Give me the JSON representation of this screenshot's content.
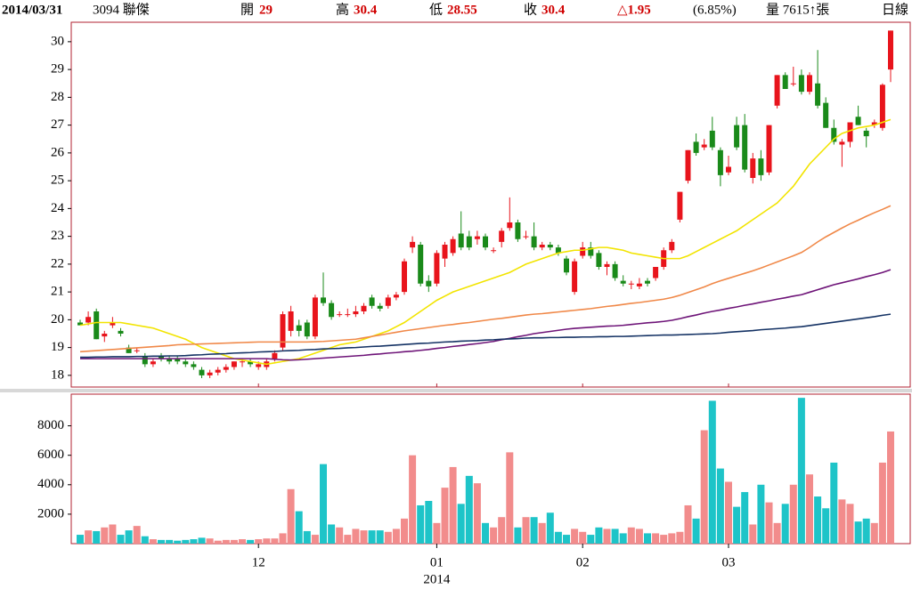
{
  "header": {
    "date": "2014/03/31",
    "stock": "3094 聯傑",
    "open_label": "開",
    "open": "29",
    "high_label": "高",
    "high": "30.4",
    "low_label": "低",
    "low": "28.55",
    "close_label": "收",
    "close": "30.4",
    "change": "△1.95",
    "change_pct": "(6.85%)",
    "volume": "量 7615↑張",
    "period": "日線"
  },
  "chart_data": [
    {
      "type": "candlestick",
      "up_color": "#e8141c",
      "down_color": "#1a8a1a",
      "categories": [
        null,
        null,
        null,
        null,
        null,
        null,
        null,
        null,
        null,
        null,
        null,
        null,
        null,
        null,
        null,
        null,
        null,
        null,
        null,
        null,
        null,
        null,
        "12",
        null,
        null,
        null,
        null,
        null,
        null,
        null,
        null,
        null,
        null,
        null,
        null,
        null,
        null,
        null,
        null,
        null,
        null,
        null,
        null,
        null,
        "01",
        null,
        null,
        null,
        null,
        null,
        null,
        null,
        null,
        null,
        null,
        null,
        null,
        null,
        null,
        null,
        null,
        null,
        "02",
        null,
        null,
        null,
        null,
        null,
        null,
        null,
        null,
        null,
        null,
        null,
        null,
        null,
        null,
        null,
        null,
        null,
        "03",
        null,
        null,
        null,
        null,
        null,
        null,
        null,
        null,
        null,
        null,
        null,
        null,
        null,
        null,
        null,
        null,
        null,
        null,
        null,
        null
      ],
      "year_label": "2014",
      "open": [
        19.9,
        19.9,
        20.3,
        19.4,
        19.8,
        19.6,
        19.0,
        18.9,
        18.7,
        18.4,
        18.7,
        18.6,
        18.6,
        18.5,
        18.4,
        18.2,
        18.0,
        18.1,
        18.2,
        18.3,
        18.5,
        18.5,
        18.3,
        18.3,
        18.6,
        19.0,
        19.6,
        19.8,
        19.9,
        19.4,
        20.8,
        20.6,
        20.2,
        20.2,
        20.2,
        20.3,
        20.8,
        20.5,
        20.5,
        20.8,
        21.0,
        22.6,
        22.7,
        21.4,
        21.3,
        22.2,
        22.4,
        23.1,
        23.0,
        22.9,
        23.0,
        22.5,
        22.8,
        23.3,
        23.5,
        23.0,
        23.0,
        22.6,
        22.7,
        22.6,
        22.2,
        21.0,
        22.3,
        22.6,
        22.4,
        21.9,
        22.0,
        21.4,
        21.3,
        21.2,
        21.4,
        21.5,
        21.9,
        22.5,
        23.6,
        25.0,
        26.4,
        26.2,
        26.8,
        26.1,
        25.3,
        27.0,
        27.0,
        25.1,
        25.8,
        25.3,
        27.7,
        28.8,
        28.5,
        28.8,
        28.2,
        28.5,
        27.8,
        26.9,
        26.3,
        26.4,
        27.3,
        26.8,
        27.0,
        26.9,
        29
      ],
      "high": [
        20.0,
        20.3,
        20.4,
        19.6,
        20.1,
        19.7,
        19.1,
        19.0,
        18.8,
        18.6,
        18.8,
        18.7,
        18.7,
        18.6,
        18.5,
        18.3,
        18.2,
        18.3,
        18.4,
        18.5,
        18.6,
        18.6,
        18.5,
        18.6,
        18.9,
        20.3,
        20.5,
        20.0,
        20.0,
        20.9,
        21.7,
        20.7,
        20.3,
        20.4,
        20.5,
        20.6,
        20.9,
        20.6,
        20.9,
        21.0,
        22.2,
        23.0,
        22.8,
        21.6,
        22.5,
        22.8,
        23.0,
        23.9,
        23.2,
        23.2,
        23.1,
        22.6,
        23.3,
        24.4,
        23.6,
        23.2,
        23.5,
        22.8,
        22.8,
        22.7,
        22.3,
        22.2,
        22.8,
        22.8,
        22.5,
        22.1,
        22.1,
        21.6,
        21.4,
        21.5,
        21.5,
        21.9,
        22.6,
        22.9,
        24.6,
        26.1,
        26.7,
        26.5,
        27.3,
        26.2,
        25.9,
        27.3,
        27.4,
        26.0,
        26.1,
        27.0,
        28.8,
        28.9,
        29.1,
        29.0,
        28.9,
        29.7,
        28.0,
        27.2,
        26.5,
        27.1,
        27.7,
        26.9,
        27.2,
        28.5,
        30.4
      ],
      "low": [
        19.8,
        19.8,
        19.3,
        19.2,
        19.7,
        19.4,
        18.8,
        18.8,
        18.3,
        18.3,
        18.5,
        18.4,
        18.4,
        18.3,
        18.2,
        17.9,
        17.9,
        18.0,
        18.1,
        18.2,
        18.3,
        18.3,
        18.2,
        18.2,
        18.5,
        18.9,
        19.4,
        19.4,
        19.3,
        19.3,
        20.5,
        20.0,
        20.1,
        20.1,
        20.1,
        20.2,
        20.4,
        20.3,
        20.4,
        20.7,
        20.9,
        22.4,
        21.2,
        21.0,
        21.2,
        21.9,
        22.3,
        22.5,
        22.5,
        22.7,
        22.5,
        22.4,
        22.6,
        23.2,
        22.8,
        22.9,
        22.5,
        22.5,
        22.5,
        22.3,
        21.6,
        20.9,
        22.2,
        22.2,
        21.8,
        21.6,
        21.4,
        21.2,
        21.1,
        21.1,
        21.2,
        21.4,
        21.8,
        22.4,
        23.5,
        24.9,
        25.9,
        26.1,
        26.1,
        24.8,
        25.2,
        26.1,
        25.3,
        24.9,
        25.0,
        25.2,
        27.6,
        28.3,
        28.4,
        28.1,
        28.1,
        27.6,
        26.9,
        26.3,
        25.5,
        26.2,
        27.0,
        26.2,
        26.9,
        26.8,
        28.55
      ],
      "close": [
        19.8,
        20.1,
        19.3,
        19.5,
        19.9,
        19.5,
        18.8,
        18.9,
        18.4,
        18.5,
        18.6,
        18.5,
        18.5,
        18.4,
        18.3,
        18.0,
        18.1,
        18.2,
        18.3,
        18.5,
        18.5,
        18.4,
        18.4,
        18.5,
        18.8,
        20.2,
        20.3,
        19.6,
        19.4,
        20.8,
        20.6,
        20.1,
        20.2,
        20.2,
        20.3,
        20.5,
        20.5,
        20.4,
        20.8,
        20.9,
        22.1,
        22.8,
        21.3,
        21.2,
        22.4,
        22.7,
        22.9,
        22.6,
        22.6,
        23.0,
        22.6,
        22.5,
        23.2,
        23.5,
        22.9,
        23.0,
        22.6,
        22.7,
        22.6,
        22.4,
        21.7,
        22.1,
        22.6,
        22.3,
        21.9,
        22.0,
        21.5,
        21.3,
        21.3,
        21.3,
        21.3,
        21.9,
        22.5,
        22.8,
        24.6,
        26.1,
        26.0,
        26.3,
        26.2,
        25.2,
        25.5,
        26.2,
        25.4,
        25.8,
        25.2,
        27.0,
        28.8,
        28.3,
        28.5,
        28.2,
        28.8,
        27.7,
        26.9,
        26.4,
        26.4,
        27.1,
        27.0,
        26.6,
        27.1,
        28.45,
        30.4
      ],
      "lines": [
        {
          "color": "#f2e400",
          "values": [
            19.8,
            19.85,
            19.9,
            19.9,
            19.9,
            19.9,
            19.85,
            19.8,
            19.75,
            19.7,
            19.6,
            19.5,
            19.4,
            19.3,
            19.15,
            19.0,
            18.9,
            18.8,
            18.7,
            18.6,
            18.55,
            18.5,
            18.45,
            18.4,
            18.45,
            18.5,
            18.55,
            18.6,
            18.7,
            18.8,
            18.9,
            19.0,
            19.1,
            19.15,
            19.2,
            19.3,
            19.4,
            19.5,
            19.6,
            19.75,
            19.9,
            20.1,
            20.3,
            20.5,
            20.7,
            20.85,
            21.0,
            21.1,
            21.2,
            21.3,
            21.4,
            21.5,
            21.6,
            21.7,
            21.85,
            22.0,
            22.1,
            22.2,
            22.3,
            22.4,
            22.45,
            22.5,
            22.5,
            22.55,
            22.6,
            22.6,
            22.55,
            22.5,
            22.4,
            22.35,
            22.3,
            22.25,
            22.2,
            22.2,
            22.2,
            22.3,
            22.45,
            22.6,
            22.75,
            22.9,
            23.05,
            23.2,
            23.4,
            23.6,
            23.8,
            24.0,
            24.2,
            24.5,
            24.8,
            25.2,
            25.6,
            25.9,
            26.2,
            26.5,
            26.7,
            26.8,
            26.9,
            26.95,
            27.0,
            27.1,
            27.2
          ]
        },
        {
          "color": "#f08848",
          "values": [
            18.85,
            18.87,
            18.89,
            18.91,
            18.93,
            18.95,
            18.97,
            18.99,
            19.01,
            19.03,
            19.05,
            19.07,
            19.1,
            19.11,
            19.12,
            19.13,
            19.14,
            19.15,
            19.16,
            19.17,
            19.18,
            19.19,
            19.2,
            19.2,
            19.2,
            19.2,
            19.2,
            19.2,
            19.2,
            19.21,
            19.22,
            19.24,
            19.26,
            19.28,
            19.3,
            19.35,
            19.4,
            19.45,
            19.5,
            19.55,
            19.6,
            19.64,
            19.68,
            19.72,
            19.76,
            19.8,
            19.83,
            19.87,
            19.9,
            19.94,
            19.98,
            20.02,
            20.05,
            20.09,
            20.13,
            20.17,
            20.2,
            20.22,
            20.25,
            20.28,
            20.31,
            20.34,
            20.37,
            20.4,
            20.44,
            20.48,
            20.51,
            20.55,
            20.59,
            20.62,
            20.66,
            20.7,
            20.74,
            20.8,
            20.88,
            20.98,
            21.08,
            21.18,
            21.3,
            21.4,
            21.49,
            21.58,
            21.67,
            21.76,
            21.86,
            21.97,
            22.08,
            22.19,
            22.3,
            22.42,
            22.6,
            22.8,
            22.98,
            23.14,
            23.3,
            23.45,
            23.58,
            23.72,
            23.85,
            23.97,
            24.1
          ]
        },
        {
          "color": "#6e1478",
          "values": [
            18.6,
            18.6,
            18.6,
            18.6,
            18.6,
            18.6,
            18.6,
            18.6,
            18.6,
            18.6,
            18.6,
            18.6,
            18.6,
            18.6,
            18.6,
            18.6,
            18.6,
            18.6,
            18.6,
            18.6,
            18.6,
            18.6,
            18.6,
            18.6,
            18.58,
            18.56,
            18.55,
            18.56,
            18.58,
            18.6,
            18.62,
            18.64,
            18.66,
            18.68,
            18.7,
            18.72,
            18.75,
            18.77,
            18.8,
            18.82,
            18.85,
            18.87,
            18.9,
            18.93,
            18.97,
            19.0,
            19.04,
            19.07,
            19.11,
            19.14,
            19.18,
            19.22,
            19.28,
            19.33,
            19.39,
            19.44,
            19.5,
            19.54,
            19.58,
            19.62,
            19.66,
            19.69,
            19.71,
            19.73,
            19.75,
            19.77,
            19.78,
            19.8,
            19.83,
            19.86,
            19.89,
            19.91,
            19.94,
            19.98,
            20.04,
            20.11,
            20.17,
            20.24,
            20.3,
            20.35,
            20.41,
            20.46,
            20.52,
            20.57,
            20.63,
            20.68,
            20.74,
            20.79,
            20.85,
            20.9,
            20.99,
            21.08,
            21.17,
            21.26,
            21.33,
            21.4,
            21.47,
            21.55,
            21.62,
            21.7,
            21.8
          ]
        },
        {
          "color": "#143264",
          "values": [
            18.65,
            18.65,
            18.66,
            18.66,
            18.67,
            18.67,
            18.67,
            18.68,
            18.68,
            18.69,
            18.69,
            18.7,
            18.7,
            18.71,
            18.73,
            18.74,
            18.76,
            18.77,
            18.78,
            18.8,
            18.81,
            18.82,
            18.84,
            18.85,
            18.86,
            18.88,
            18.89,
            18.9,
            18.92,
            18.93,
            18.95,
            18.96,
            18.97,
            18.99,
            19.0,
            19.02,
            19.04,
            19.05,
            19.07,
            19.09,
            19.11,
            19.13,
            19.15,
            19.16,
            19.18,
            19.2,
            19.21,
            19.23,
            19.24,
            19.25,
            19.27,
            19.28,
            19.3,
            19.31,
            19.32,
            19.34,
            19.35,
            19.35,
            19.36,
            19.36,
            19.37,
            19.37,
            19.38,
            19.38,
            19.39,
            19.39,
            19.4,
            19.4,
            19.41,
            19.42,
            19.43,
            19.44,
            19.45,
            19.45,
            19.46,
            19.47,
            19.48,
            19.49,
            19.5,
            19.52,
            19.55,
            19.57,
            19.59,
            19.61,
            19.64,
            19.66,
            19.68,
            19.7,
            19.73,
            19.75,
            19.79,
            19.83,
            19.87,
            19.91,
            19.95,
            19.99,
            20.03,
            20.07,
            20.11,
            20.16,
            20.2
          ]
        }
      ],
      "ylim": [
        17.58,
        30.7
      ],
      "yticks": [
        18,
        19,
        20,
        21,
        22,
        23,
        24,
        25,
        26,
        27,
        28,
        29,
        30
      ]
    },
    {
      "type": "volume",
      "up_color": "#f28c8c",
      "down_color": "#1ec4c8",
      "values": [
        600,
        900,
        850,
        1100,
        1300,
        600,
        900,
        1200,
        500,
        300,
        250,
        250,
        200,
        250,
        300,
        400,
        350,
        200,
        250,
        250,
        300,
        250,
        300,
        350,
        350,
        700,
        3700,
        2200,
        850,
        600,
        5400,
        1300,
        1100,
        600,
        1000,
        900,
        900,
        900,
        800,
        1000,
        1700,
        6000,
        2600,
        2900,
        1400,
        3800,
        5200,
        2700,
        4600,
        4100,
        1400,
        1100,
        1800,
        6200,
        1100,
        1800,
        1800,
        1400,
        2100,
        800,
        600,
        1000,
        800,
        600,
        1100,
        1000,
        1000,
        700,
        1100,
        1000,
        700,
        700,
        600,
        700,
        800,
        2600,
        1700,
        7700,
        9700,
        5100,
        4200,
        2500,
        3500,
        1300,
        4000,
        2800,
        1400,
        2700,
        4000,
        9900,
        4700,
        3200,
        2400,
        5500,
        3000,
        2700,
        1500,
        1700,
        1400,
        5500,
        7615
      ],
      "ylim": [
        0,
        10150
      ],
      "yticks": [
        2000,
        4000,
        6000,
        8000
      ]
    }
  ]
}
